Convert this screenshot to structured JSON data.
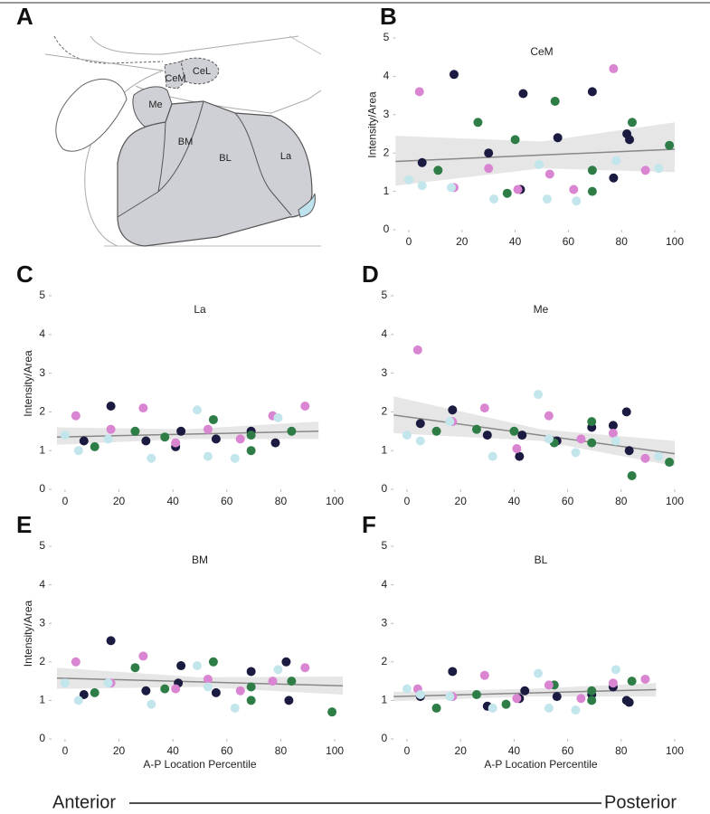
{
  "diagram": {
    "panel": "A",
    "labels": [
      "CeM",
      "CeL",
      "Me",
      "BM",
      "BL",
      "La"
    ]
  },
  "footer": {
    "start": "Anterior",
    "end": "Posterior"
  },
  "chart_data": [
    {
      "type": "scatter",
      "panel": "B",
      "title": "CeM",
      "ylabel": "Intensity/Area",
      "xlim": [
        -5,
        105
      ],
      "ylim": [
        0,
        5
      ],
      "xticks": [
        0,
        20,
        40,
        60,
        80,
        100
      ],
      "yticks": [
        0,
        1,
        2,
        3,
        4,
        5
      ],
      "series": [
        {
          "color": "#1b1a40",
          "x": [
            5,
            17,
            30,
            43,
            42,
            56,
            69,
            77,
            82,
            83
          ],
          "values": [
            1.75,
            4.05,
            2.0,
            3.55,
            1.05,
            2.4,
            3.6,
            1.35,
            2.5,
            2.35
          ]
        },
        {
          "color": "#2e7d46",
          "x": [
            11,
            26,
            37,
            40,
            55,
            69,
            69,
            84,
            98
          ],
          "values": [
            1.55,
            2.8,
            0.95,
            2.35,
            3.35,
            1.55,
            1.0,
            2.8,
            2.2
          ]
        },
        {
          "color": "#d985d2",
          "x": [
            4,
            17,
            30,
            41,
            53,
            62,
            77,
            89
          ],
          "values": [
            3.6,
            1.1,
            1.6,
            1.05,
            1.45,
            1.05,
            4.2,
            1.55
          ]
        },
        {
          "color": "#c3e5ec",
          "x": [
            0,
            5,
            16,
            32,
            49,
            52,
            63,
            78,
            94
          ],
          "values": [
            1.3,
            1.15,
            1.1,
            0.8,
            1.7,
            0.8,
            0.75,
            1.8,
            1.6
          ]
        }
      ],
      "fit": {
        "color": "#888888",
        "x": [
          -5,
          100
        ],
        "values": [
          1.78,
          2.1
        ]
      },
      "band": {
        "x": [
          -5,
          50,
          100
        ],
        "lower": [
          1.15,
          1.6,
          1.5
        ],
        "upper": [
          2.45,
          2.3,
          2.8
        ]
      }
    },
    {
      "type": "scatter",
      "panel": "C",
      "title": "La",
      "ylabel": "Intensity/Area",
      "xlim": [
        -5,
        105
      ],
      "ylim": [
        0,
        5
      ],
      "xticks": [
        0,
        20,
        40,
        60,
        80,
        100
      ],
      "yticks": [
        0,
        1,
        2,
        3,
        4,
        5
      ],
      "series": [
        {
          "color": "#1b1a40",
          "x": [
            7,
            17,
            30,
            41,
            43,
            56,
            69,
            78
          ],
          "values": [
            1.25,
            2.15,
            1.25,
            1.1,
            1.5,
            1.3,
            1.5,
            1.2
          ]
        },
        {
          "color": "#2e7d46",
          "x": [
            11,
            26,
            37,
            55,
            69,
            69,
            84
          ],
          "values": [
            1.1,
            1.5,
            1.35,
            1.8,
            1.4,
            1.0,
            1.5
          ]
        },
        {
          "color": "#d985d2",
          "x": [
            4,
            17,
            29,
            41,
            53,
            65,
            77,
            89
          ],
          "values": [
            1.9,
            1.55,
            2.1,
            1.2,
            1.55,
            1.3,
            1.9,
            2.15
          ]
        },
        {
          "color": "#c3e5ec",
          "x": [
            0,
            5,
            16,
            32,
            49,
            53,
            63,
            79
          ],
          "values": [
            1.4,
            1.0,
            1.3,
            0.8,
            2.05,
            0.85,
            0.8,
            1.85
          ]
        }
      ],
      "fit": {
        "color": "#888888",
        "x": [
          -3,
          94
        ],
        "values": [
          1.35,
          1.5
        ]
      },
      "band": {
        "x": [
          -3,
          45,
          94
        ],
        "lower": [
          1.15,
          1.3,
          1.3
        ],
        "upper": [
          1.6,
          1.55,
          1.75
        ]
      }
    },
    {
      "type": "scatter",
      "panel": "D",
      "title": "Me",
      "xlim": [
        -5,
        105
      ],
      "ylim": [
        0,
        5
      ],
      "xticks": [
        0,
        20,
        40,
        60,
        80,
        100
      ],
      "yticks": [
        0,
        1,
        2,
        3,
        4,
        5
      ],
      "series": [
        {
          "color": "#1b1a40",
          "x": [
            5,
            17,
            30,
            42,
            43,
            56,
            69,
            77,
            82,
            83
          ],
          "values": [
            1.7,
            2.05,
            1.4,
            0.85,
            1.4,
            1.25,
            1.6,
            1.65,
            2.0,
            1.0
          ]
        },
        {
          "color": "#2e7d46",
          "x": [
            11,
            26,
            40,
            55,
            69,
            69,
            84,
            98
          ],
          "values": [
            1.5,
            1.55,
            1.5,
            1.2,
            1.75,
            1.2,
            0.35,
            0.7
          ]
        },
        {
          "color": "#d985d2",
          "x": [
            4,
            17,
            29,
            41,
            53,
            65,
            77,
            89
          ],
          "values": [
            3.6,
            1.75,
            2.1,
            1.05,
            1.9,
            1.3,
            1.45,
            0.8
          ]
        },
        {
          "color": "#c3e5ec",
          "x": [
            0,
            5,
            16,
            32,
            49,
            53,
            63,
            78,
            94
          ],
          "values": [
            1.4,
            1.25,
            1.75,
            0.85,
            2.45,
            1.3,
            0.95,
            1.25,
            0.85
          ]
        }
      ],
      "fit": {
        "color": "#888888",
        "x": [
          -5,
          100
        ],
        "values": [
          1.92,
          0.92
        ]
      },
      "band": {
        "x": [
          -5,
          50,
          100
        ],
        "lower": [
          1.45,
          1.25,
          0.6
        ],
        "upper": [
          2.4,
          1.55,
          1.25
        ]
      }
    },
    {
      "type": "scatter",
      "panel": "E",
      "title": "BM",
      "ylabel": "Intensity/Area",
      "xlabel": "A-P Location Percentile",
      "xlim": [
        -5,
        105
      ],
      "ylim": [
        0,
        5
      ],
      "xticks": [
        0,
        20,
        40,
        60,
        80,
        100
      ],
      "yticks": [
        0,
        1,
        2,
        3,
        4,
        5
      ],
      "series": [
        {
          "color": "#1b1a40",
          "x": [
            7,
            17,
            30,
            42,
            43,
            56,
            69,
            82,
            83
          ],
          "values": [
            1.15,
            2.55,
            1.25,
            1.45,
            1.9,
            1.2,
            1.75,
            2.0,
            1.0
          ]
        },
        {
          "color": "#2e7d46",
          "x": [
            11,
            26,
            37,
            55,
            69,
            69,
            84,
            99
          ],
          "values": [
            1.2,
            1.85,
            1.3,
            2.0,
            1.35,
            1.0,
            1.5,
            0.7
          ]
        },
        {
          "color": "#d985d2",
          "x": [
            4,
            17,
            29,
            41,
            53,
            65,
            77,
            89
          ],
          "values": [
            2.0,
            1.45,
            2.15,
            1.3,
            1.55,
            1.25,
            1.5,
            1.85
          ]
        },
        {
          "color": "#c3e5ec",
          "x": [
            0,
            5,
            16,
            32,
            49,
            53,
            63,
            79
          ],
          "values": [
            1.45,
            1.0,
            1.45,
            0.9,
            1.9,
            1.35,
            0.8,
            1.8
          ]
        }
      ],
      "fit": {
        "color": "#888888",
        "x": [
          -3,
          103
        ],
        "values": [
          1.58,
          1.38
        ]
      },
      "band": {
        "x": [
          -3,
          50,
          103
        ],
        "lower": [
          1.3,
          1.35,
          1.15
        ],
        "upper": [
          1.85,
          1.6,
          1.62
        ]
      }
    },
    {
      "type": "scatter",
      "panel": "F",
      "title": "BL",
      "xlabel": "A-P Location Percentile",
      "xlim": [
        -5,
        105
      ],
      "ylim": [
        0,
        5
      ],
      "xticks": [
        0,
        20,
        40,
        60,
        80,
        100
      ],
      "yticks": [
        0,
        1,
        2,
        3,
        4,
        5
      ],
      "series": [
        {
          "color": "#1b1a40",
          "x": [
            5,
            17,
            30,
            42,
            44,
            56,
            69,
            77,
            82,
            83
          ],
          "values": [
            1.1,
            1.75,
            0.85,
            1.05,
            1.25,
            1.1,
            1.15,
            1.35,
            1.0,
            0.95
          ]
        },
        {
          "color": "#2e7d46",
          "x": [
            11,
            26,
            37,
            55,
            69,
            69,
            84
          ],
          "values": [
            0.8,
            1.15,
            0.9,
            1.4,
            1.25,
            1.0,
            1.5
          ]
        },
        {
          "color": "#d985d2",
          "x": [
            4,
            17,
            29,
            41,
            53,
            65,
            77,
            89
          ],
          "values": [
            1.3,
            1.1,
            1.65,
            1.05,
            1.4,
            1.05,
            1.45,
            1.55
          ]
        },
        {
          "color": "#c3e5ec",
          "x": [
            0,
            5,
            16,
            32,
            49,
            53,
            63,
            78
          ],
          "values": [
            1.3,
            1.15,
            1.1,
            0.8,
            1.7,
            0.8,
            0.75,
            1.8
          ]
        }
      ],
      "fit": {
        "color": "#888888",
        "x": [
          -5,
          93
        ],
        "values": [
          1.1,
          1.28
        ]
      },
      "band": {
        "x": [
          -5,
          45,
          93
        ],
        "lower": [
          0.98,
          1.1,
          1.1
        ],
        "upper": [
          1.22,
          1.3,
          1.45
        ]
      }
    }
  ]
}
